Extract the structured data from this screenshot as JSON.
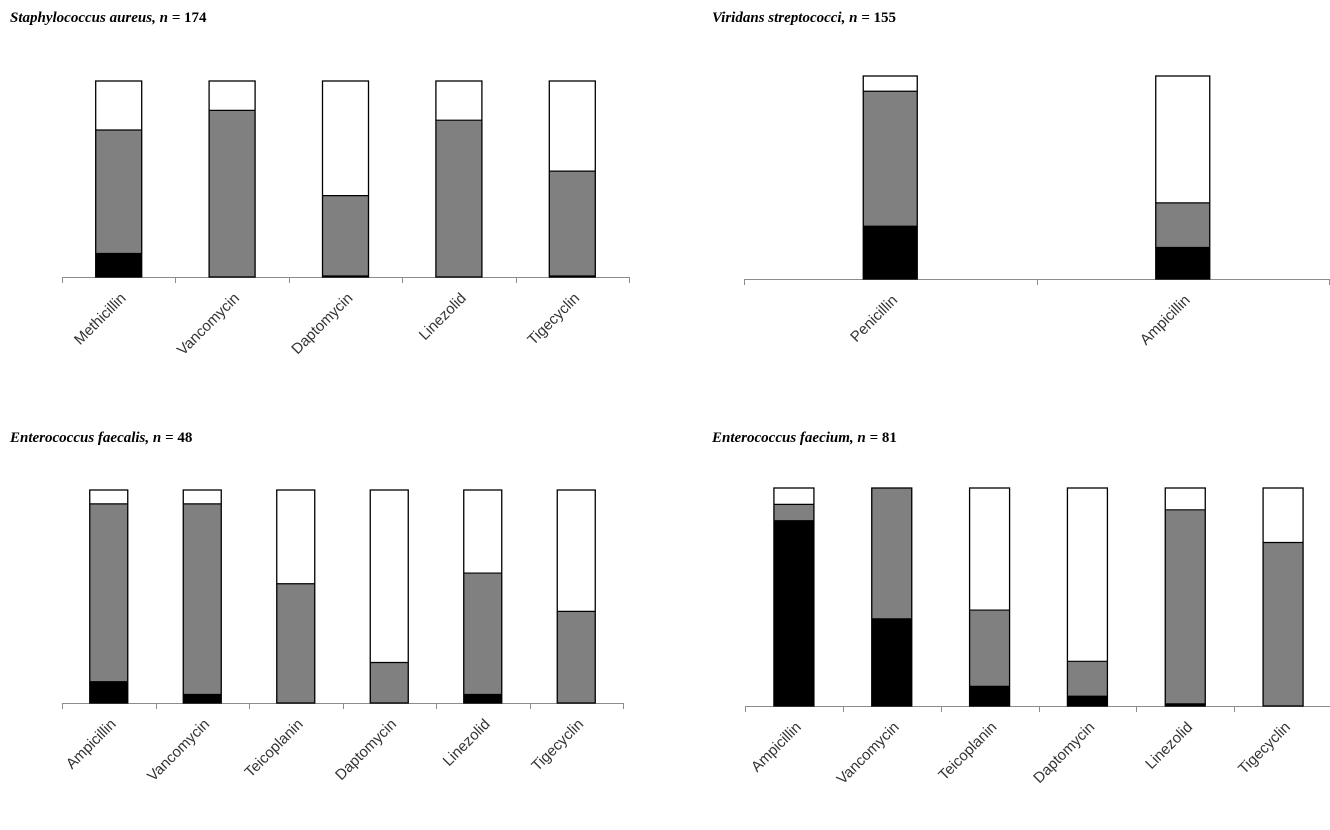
{
  "chart_data": [
    {
      "type": "bar",
      "stacked": true,
      "organism": "Staphylococcus aureus",
      "n": "174",
      "categories": [
        "Methicillin",
        "Vancomycin",
        "Daptomycin",
        "Linezolid",
        "Tigecyclin"
      ],
      "series": [
        {
          "color": "#000000",
          "values": [
            12,
            0,
            0.5,
            0,
            0.5
          ]
        },
        {
          "color": "#808080",
          "values": [
            63,
            85,
            41,
            80,
            53.5
          ]
        },
        {
          "color": "#ffffff",
          "values": [
            25,
            15,
            58.5,
            20,
            46
          ]
        }
      ],
      "ylim": [
        0,
        100
      ],
      "grid": false,
      "legend": "none"
    },
    {
      "type": "bar",
      "stacked": true,
      "organism": "Viridans streptococci",
      "n": "155",
      "categories": [
        "Penicillin",
        "Ampicillin"
      ],
      "series": [
        {
          "color": "#000000",
          "values": [
            26,
            15.5
          ]
        },
        {
          "color": "#808080",
          "values": [
            66.5,
            22
          ]
        },
        {
          "color": "#ffffff",
          "values": [
            7.5,
            62.5
          ]
        }
      ],
      "ylim": [
        0,
        100
      ],
      "grid": false,
      "legend": "none"
    },
    {
      "type": "bar",
      "stacked": true,
      "organism": "Enterococcus faecalis",
      "n": "48",
      "categories": [
        "Ampicillin",
        "Vancomycin",
        "Teicoplanin",
        "Daptomycin",
        "Linezolid",
        "Tigecyclin"
      ],
      "series": [
        {
          "color": "#000000",
          "values": [
            10,
            4,
            0,
            0,
            4,
            0
          ]
        },
        {
          "color": "#808080",
          "values": [
            83.5,
            89.5,
            56,
            19,
            57,
            43
          ]
        },
        {
          "color": "#ffffff",
          "values": [
            6.5,
            6.5,
            44,
            81,
            39,
            57
          ]
        }
      ],
      "ylim": [
        0,
        100
      ],
      "grid": false,
      "legend": "none"
    },
    {
      "type": "bar",
      "stacked": true,
      "organism": "Enterococcus faecium",
      "n": "81",
      "categories": [
        "Ampicillin",
        "Vancomycin",
        "Teicoplanin",
        "Daptomycin",
        "Linezolid",
        "Tigecyclin"
      ],
      "series": [
        {
          "color": "#000000",
          "values": [
            85,
            40,
            9,
            4.5,
            1,
            0
          ]
        },
        {
          "color": "#808080",
          "values": [
            7.5,
            60,
            35,
            16,
            89,
            75
          ]
        },
        {
          "color": "#ffffff",
          "values": [
            7.5,
            0,
            56,
            79.5,
            10,
            25
          ]
        }
      ],
      "ylim": [
        0,
        100
      ],
      "grid": false,
      "legend": "none"
    }
  ]
}
